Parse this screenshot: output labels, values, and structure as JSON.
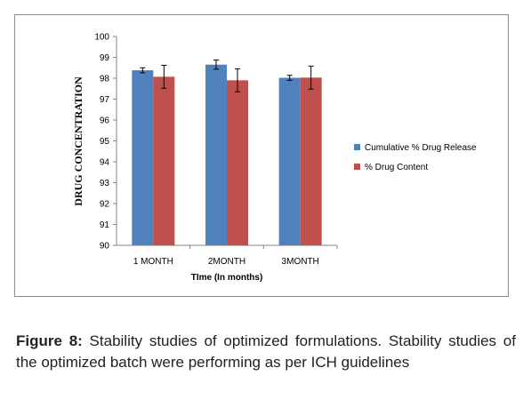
{
  "chart_data": {
    "type": "bar",
    "xlabel": "TIme (In months)",
    "ylabel": "DRUG CONCENTRATION",
    "ylim": [
      90,
      100
    ],
    "yticks": [
      90,
      91,
      92,
      93,
      94,
      95,
      96,
      97,
      98,
      99,
      100
    ],
    "categories": [
      "1 MONTH",
      "2MONTH",
      "3MONTH"
    ],
    "series": [
      {
        "name": "Cumulative % Drug Release",
        "color": "#4f81bd",
        "values": [
          98.38,
          98.65,
          98.02
        ],
        "errors": [
          0.12,
          0.22,
          0.12
        ]
      },
      {
        "name": "% Drug Content",
        "color": "#c0504d",
        "values": [
          98.07,
          97.9,
          98.03
        ],
        "errors": [
          0.55,
          0.55,
          0.55
        ]
      }
    ],
    "legend": "right",
    "grid": false
  },
  "caption": {
    "label": "Figure 8:",
    "text": " Stability studies of optimized formulations. Stability studies of the optimized batch were performing as per ICH guidelines"
  }
}
